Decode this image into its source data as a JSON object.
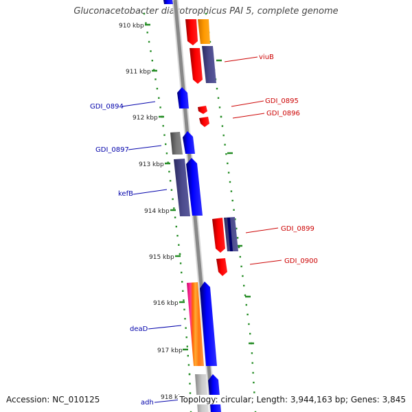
{
  "title": "Gluconacetobacter diazotrophicus PAI 5, complete genome",
  "accession": "Accession: NC_010125",
  "summary": "Topology: circular; Length: 3,944,163 bp; Genes: 3,845",
  "colors": {
    "backbone": "#888888",
    "tick": "#228B22",
    "forward_label": "#cc0000",
    "reverse_label": "#0000aa",
    "blue": "#0000ff",
    "red": "#ff0000",
    "orange": "#ff9900",
    "navy_gray": "#4b4a8c",
    "gray": "#777777",
    "light_gray": "#bbbbbb",
    "pink": "#ff3399"
  },
  "scale_labels": [
    "910 kbp",
    "911 kbp",
    "912 kbp",
    "913 kbp",
    "914 kbp",
    "915 kbp",
    "916 kbp",
    "917 kbp",
    "918 kbp"
  ],
  "gene_labels": [
    {
      "text": "viuB",
      "strand": "forward"
    },
    {
      "text": "GDI_0894",
      "strand": "reverse"
    },
    {
      "text": "GDI_0895",
      "strand": "forward"
    },
    {
      "text": "GDI_0896",
      "strand": "forward"
    },
    {
      "text": "GDI_0897",
      "strand": "reverse"
    },
    {
      "text": "kefB",
      "strand": "reverse"
    },
    {
      "text": "GDI_0899",
      "strand": "forward"
    },
    {
      "text": "GDI_0900",
      "strand": "forward"
    },
    {
      "text": "deaD",
      "strand": "reverse"
    },
    {
      "text": "adh",
      "strand": "reverse"
    }
  ]
}
